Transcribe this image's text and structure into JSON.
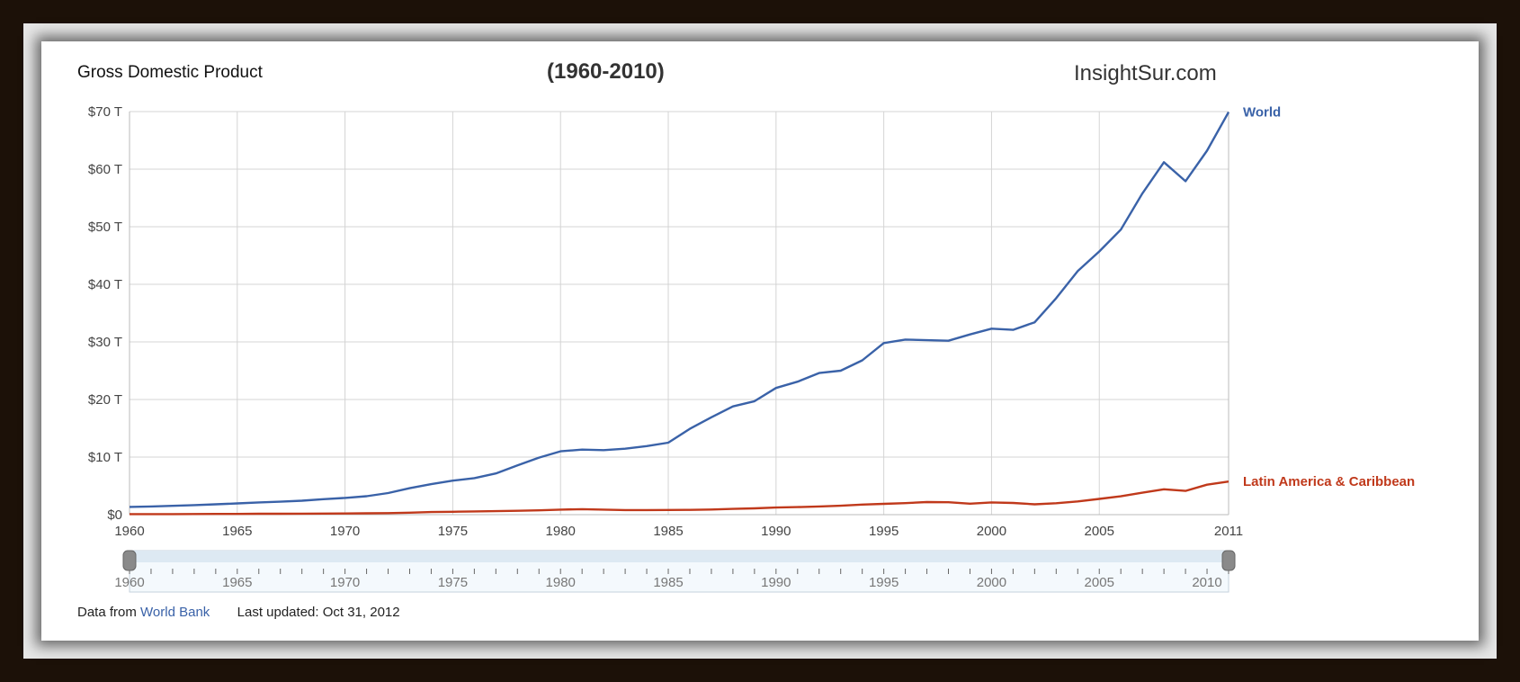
{
  "header": {
    "title": "Gross Domestic Product",
    "subtitle": "(1960-2010)",
    "brand": "InsightSur.com"
  },
  "footer": {
    "source_prefix": "Data from",
    "source_link": "World Bank",
    "updated": "Last updated: Oct 31, 2012"
  },
  "range_selector": {
    "start_year": 1960,
    "end_year": 2011
  },
  "colors": {
    "world": "#3a62a8",
    "latam": "#c0391b",
    "grid": "#d4d4d4"
  },
  "chart_data": {
    "type": "line",
    "title": "Gross Domestic Product",
    "subtitle": "(1960-2010)",
    "xlabel": "",
    "ylabel": "",
    "xlim": [
      1960,
      2011
    ],
    "ylim": [
      0,
      70
    ],
    "y_unit": "T",
    "grid": true,
    "legend_placement": "right end labels",
    "x_ticks": [
      1960,
      1965,
      1970,
      1975,
      1980,
      1985,
      1990,
      1995,
      2000,
      2005,
      2011
    ],
    "y_ticks": [
      "$0",
      "$10 T",
      "$20 T",
      "$30 T",
      "$40 T",
      "$50 T",
      "$60 T",
      "$70 T"
    ],
    "x": [
      1960,
      1961,
      1962,
      1963,
      1964,
      1965,
      1966,
      1967,
      1968,
      1969,
      1970,
      1971,
      1972,
      1973,
      1974,
      1975,
      1976,
      1977,
      1978,
      1979,
      1980,
      1981,
      1982,
      1983,
      1984,
      1985,
      1986,
      1987,
      1988,
      1989,
      1990,
      1991,
      1992,
      1993,
      1994,
      1995,
      1996,
      1997,
      1998,
      1999,
      2000,
      2001,
      2002,
      2003,
      2004,
      2005,
      2006,
      2007,
      2008,
      2009,
      2010,
      2011
    ],
    "series": [
      {
        "name": "World",
        "values": [
          1.35,
          1.42,
          1.53,
          1.65,
          1.8,
          1.95,
          2.12,
          2.25,
          2.42,
          2.68,
          2.9,
          3.2,
          3.75,
          4.6,
          5.3,
          5.9,
          6.35,
          7.15,
          8.55,
          9.9,
          11.0,
          11.3,
          11.2,
          11.45,
          11.9,
          12.5,
          14.9,
          16.9,
          18.8,
          19.7,
          22.0,
          23.1,
          24.6,
          25.0,
          26.8,
          29.8,
          30.4,
          30.3,
          30.2,
          31.3,
          32.3,
          32.1,
          33.4,
          37.6,
          42.3,
          45.7,
          49.5,
          55.8,
          61.2,
          57.9,
          63.2,
          69.9
        ]
      },
      {
        "name": "Latin America & Caribbean",
        "values": [
          0.09,
          0.1,
          0.1,
          0.11,
          0.12,
          0.13,
          0.15,
          0.16,
          0.17,
          0.19,
          0.2,
          0.23,
          0.27,
          0.35,
          0.46,
          0.5,
          0.56,
          0.61,
          0.67,
          0.75,
          0.88,
          0.95,
          0.88,
          0.79,
          0.8,
          0.82,
          0.83,
          0.89,
          1.0,
          1.1,
          1.24,
          1.32,
          1.42,
          1.55,
          1.75,
          1.88,
          2.0,
          2.18,
          2.15,
          1.9,
          2.12,
          2.03,
          1.8,
          1.98,
          2.3,
          2.73,
          3.18,
          3.82,
          4.4,
          4.12,
          5.2,
          5.75
        ]
      }
    ]
  }
}
